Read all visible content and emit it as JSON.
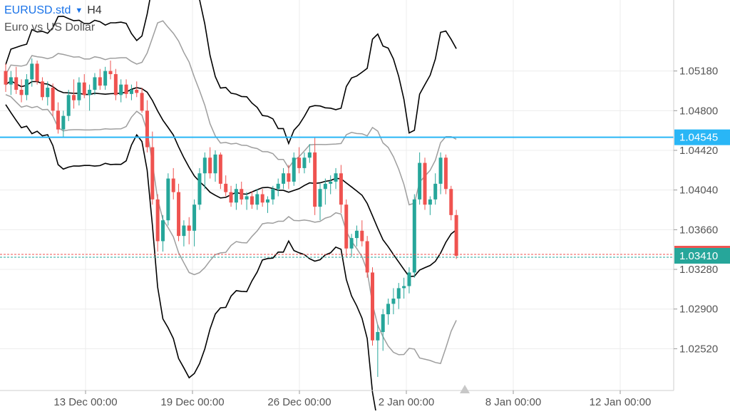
{
  "header": {
    "symbol": "EURUSD.std",
    "timeframe": "H4",
    "description": "Euro vs US Dollar"
  },
  "colors": {
    "bull": "#26a69a",
    "bear": "#ef5350",
    "band_outer": "#000000",
    "band_inner": "#9e9e9e",
    "hline": "#29b6f6",
    "bid": "#26a69a",
    "ask": "#ef5350",
    "grid": "#ececec"
  },
  "chart_data": {
    "type": "candlestick",
    "ylim": [
      1.0212,
      1.0586
    ],
    "x_range": [
      0,
      1060
    ],
    "x_ticks": [
      {
        "label": "13 Dec 00:00",
        "x": 120
      },
      {
        "label": "19 Dec 00:00",
        "x": 270
      },
      {
        "label": "26 Dec 00:00",
        "x": 420
      },
      {
        "label": "2 Jan 00:00",
        "x": 570
      },
      {
        "label": "8 Jan 00:00",
        "x": 720
      },
      {
        "label": "12 Jan 00:00",
        "x": 870
      }
    ],
    "y_ticks": [
      "1.05180",
      "1.04800",
      "1.04420",
      "1.04040",
      "1.03660",
      "1.03280",
      "1.02900",
      "1.02520"
    ],
    "horizontal_line": {
      "value": 1.04545,
      "label": "1.04545"
    },
    "current_price": {
      "value": 1.0341,
      "label": "1.03410"
    },
    "candles": [
      [
        1.0518,
        1.0525,
        1.0498,
        1.0505
      ],
      [
        1.0505,
        1.0518,
        1.0495,
        1.0512
      ],
      [
        1.0512,
        1.0522,
        1.0496,
        1.05
      ],
      [
        1.05,
        1.051,
        1.0488,
        1.0495
      ],
      [
        1.0495,
        1.0515,
        1.049,
        1.051
      ],
      [
        1.051,
        1.053,
        1.0503,
        1.0525
      ],
      [
        1.0525,
        1.0528,
        1.0505,
        1.0508
      ],
      [
        1.0508,
        1.0512,
        1.049,
        1.0493
      ],
      [
        1.0493,
        1.0508,
        1.0485,
        1.0502
      ],
      [
        1.0502,
        1.0506,
        1.0475,
        1.048
      ],
      [
        1.048,
        1.0488,
        1.0458,
        1.0462
      ],
      [
        1.0462,
        1.048,
        1.0455,
        1.0475
      ],
      [
        1.0475,
        1.05,
        1.047,
        1.0495
      ],
      [
        1.0495,
        1.051,
        1.0482,
        1.049
      ],
      [
        1.049,
        1.0512,
        1.0485,
        1.0507
      ],
      [
        1.0507,
        1.0515,
        1.0492,
        1.0495
      ],
      [
        1.0495,
        1.0505,
        1.048,
        1.05
      ],
      [
        1.05,
        1.0516,
        1.0495,
        1.0512
      ],
      [
        1.0512,
        1.052,
        1.05,
        1.0504
      ],
      [
        1.0504,
        1.0522,
        1.05,
        1.0518
      ],
      [
        1.0518,
        1.0528,
        1.051,
        1.0515
      ],
      [
        1.0515,
        1.052,
        1.049,
        1.0495
      ],
      [
        1.0495,
        1.051,
        1.0488,
        1.0505
      ],
      [
        1.0505,
        1.051,
        1.0492,
        1.0496
      ],
      [
        1.0496,
        1.0505,
        1.049,
        1.05
      ],
      [
        1.05,
        1.0508,
        1.0493,
        1.0497
      ],
      [
        1.0497,
        1.0502,
        1.0478,
        1.048
      ],
      [
        1.048,
        1.049,
        1.044,
        1.0445
      ],
      [
        1.0445,
        1.046,
        1.039,
        1.0395
      ],
      [
        1.0395,
        1.04,
        1.0345,
        1.0355
      ],
      [
        1.0355,
        1.038,
        1.0345,
        1.0375
      ],
      [
        1.0375,
        1.042,
        1.037,
        1.0415
      ],
      [
        1.0415,
        1.0425,
        1.0395,
        1.0402
      ],
      [
        1.0402,
        1.041,
        1.0355,
        1.036
      ],
      [
        1.036,
        1.0375,
        1.035,
        1.037
      ],
      [
        1.037,
        1.0378,
        1.0352,
        1.0365
      ],
      [
        1.0365,
        1.0395,
        1.035,
        1.039
      ],
      [
        1.039,
        1.0425,
        1.0385,
        1.042
      ],
      [
        1.042,
        1.044,
        1.0405,
        1.0435
      ],
      [
        1.0435,
        1.0445,
        1.0415,
        1.042
      ],
      [
        1.042,
        1.0442,
        1.0412,
        1.0438
      ],
      [
        1.0438,
        1.044,
        1.0405,
        1.041
      ],
      [
        1.041,
        1.0418,
        1.0398,
        1.0402
      ],
      [
        1.0402,
        1.0408,
        1.0388,
        1.0392
      ],
      [
        1.0392,
        1.041,
        1.0385,
        1.0405
      ],
      [
        1.0405,
        1.0412,
        1.039,
        1.0395
      ],
      [
        1.0395,
        1.0402,
        1.0385,
        1.0398
      ],
      [
        1.0398,
        1.0403,
        1.0386,
        1.039
      ],
      [
        1.039,
        1.0405,
        1.0385,
        1.04
      ],
      [
        1.04,
        1.0405,
        1.0388,
        1.0392
      ],
      [
        1.0392,
        1.0398,
        1.0382,
        1.0395
      ],
      [
        1.0395,
        1.0408,
        1.039,
        1.0405
      ],
      [
        1.0405,
        1.0415,
        1.0398,
        1.041
      ],
      [
        1.041,
        1.0425,
        1.0405,
        1.042
      ],
      [
        1.042,
        1.0428,
        1.0405,
        1.0412
      ],
      [
        1.0412,
        1.044,
        1.0408,
        1.0435
      ],
      [
        1.0435,
        1.0445,
        1.042,
        1.0425
      ],
      [
        1.0425,
        1.044,
        1.042,
        1.0435
      ],
      [
        1.0435,
        1.0448,
        1.043,
        1.044
      ],
      [
        1.044,
        1.0455,
        1.038,
        1.0388
      ],
      [
        1.0388,
        1.041,
        1.0375,
        1.0405
      ],
      [
        1.0405,
        1.0415,
        1.039,
        1.041
      ],
      [
        1.041,
        1.0418,
        1.04,
        1.0412
      ],
      [
        1.0412,
        1.0425,
        1.0405,
        1.042
      ],
      [
        1.042,
        1.0428,
        1.0382,
        1.039
      ],
      [
        1.039,
        1.0395,
        1.034,
        1.0348
      ],
      [
        1.0348,
        1.0362,
        1.034,
        1.0358
      ],
      [
        1.0358,
        1.037,
        1.035,
        1.0365
      ],
      [
        1.0365,
        1.0375,
        1.035,
        1.0355
      ],
      [
        1.0355,
        1.036,
        1.032,
        1.0325
      ],
      [
        1.0325,
        1.033,
        1.0255,
        1.026
      ],
      [
        1.026,
        1.0275,
        1.0225,
        1.0268
      ],
      [
        1.0268,
        1.029,
        1.025,
        1.0285
      ],
      [
        1.0285,
        1.03,
        1.0275,
        1.0295
      ],
      [
        1.0295,
        1.031,
        1.0285,
        1.03
      ],
      [
        1.03,
        1.0315,
        1.029,
        1.031
      ],
      [
        1.031,
        1.032,
        1.03,
        1.0312
      ],
      [
        1.0312,
        1.033,
        1.0305,
        1.0325
      ],
      [
        1.0325,
        1.04,
        1.032,
        1.0395
      ],
      [
        1.0395,
        1.044,
        1.039,
        1.043
      ],
      [
        1.043,
        1.0435,
        1.0385,
        1.039
      ],
      [
        1.039,
        1.0398,
        1.038,
        1.0395
      ],
      [
        1.0395,
        1.042,
        1.039,
        1.041
      ],
      [
        1.041,
        1.044,
        1.04,
        1.0435
      ],
      [
        1.0435,
        1.0438,
        1.04,
        1.0405
      ],
      [
        1.0405,
        1.0408,
        1.0375,
        1.038
      ],
      [
        1.038,
        1.0385,
        1.0338,
        1.0341
      ]
    ],
    "candle_x_start": 8,
    "candle_x_step": 7.35
  }
}
